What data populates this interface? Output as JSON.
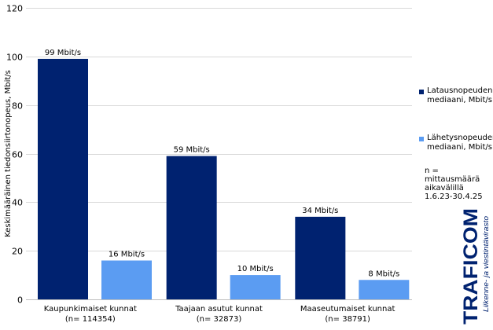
{
  "chart_data": {
    "type": "bar",
    "categories": [
      [
        "Kaupunkimaiset kunnat",
        "(n= 114354)"
      ],
      [
        "Taajaan asutut kunnat",
        "(n= 32873)"
      ],
      [
        "Maaseutumaiset kunnat",
        "(n= 38791)"
      ]
    ],
    "series": [
      {
        "name": "Latausnopeuden mediaani, Mbit/s",
        "color": "#002270",
        "values": [
          99,
          59,
          34
        ],
        "labels": [
          "99 Mbit/s",
          "59 Mbit/s",
          "34 Mbit/s"
        ]
      },
      {
        "name": "Lähetysnopeuden mediaani, Mbit/s",
        "color": "#5b9cf2",
        "values": [
          16,
          10,
          8
        ],
        "labels": [
          "16 Mbit/s",
          "10 Mbit/s",
          "8 Mbit/s"
        ]
      }
    ],
    "ylabel": "Keskimääräinen tiedonsiirtonopeus, Mbit/s",
    "ylim": [
      0,
      120
    ],
    "yticks": [
      0,
      20,
      40,
      60,
      80,
      100,
      120
    ],
    "grid": true,
    "legend_position": "right"
  },
  "legend": {
    "items": [
      {
        "lines": [
          "Latausnopeuden",
          "mediaani, Mbit/s"
        ],
        "color": "#002270"
      },
      {
        "lines": [
          "Lähetysnopeuden",
          "mediaani, Mbit/s"
        ],
        "color": "#5b9cf2"
      }
    ]
  },
  "note": {
    "lines": [
      "n = mittausmäärä",
      "aikavälillä",
      "1.6.23-30.4.25"
    ]
  },
  "logo": {
    "brand": "TRAFICOM",
    "subtitle": "Liikenne- ja viestintävirasto",
    "color": "#002270"
  }
}
